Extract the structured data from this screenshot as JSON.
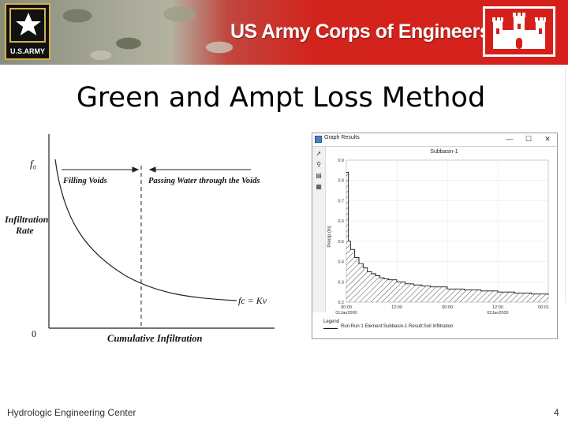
{
  "banner": {
    "army_logo_text": "U.S.ARMY",
    "title": "US Army Corps of Engineers",
    "colors": {
      "red": "#d61f1b",
      "gold": "#d4b24a"
    }
  },
  "slide": {
    "title": "Green and Ampt Loss Method",
    "footer_left": "Hydrologic Engineering Center",
    "page_number": "4"
  },
  "diagram": {
    "f0_label": "f₀",
    "filling_voids": "Filling Voids",
    "passing_water": "Passing Water through the Voids",
    "y_axis_label_line1": "Infiltration",
    "y_axis_label_line2": "Rate",
    "fc_label": "fc = Kv",
    "zero_label": "0",
    "x_axis_label": "Cumulative Infiltration"
  },
  "graph_window": {
    "title": "Graph Results",
    "controls": {
      "minimize": "—",
      "maximize": "☐",
      "close": "✕"
    },
    "tools": [
      "pointer-icon",
      "zoom-icon",
      "graph-icon",
      "table-icon"
    ]
  },
  "chart_data": {
    "type": "area",
    "title": "Subbasin-1",
    "ylabel": "Precip (in)",
    "ylim": [
      0.2,
      0.9
    ],
    "yticks": [
      "0.9",
      "0.8",
      "0.7",
      "0.6",
      "0.5",
      "0.4",
      "0.3",
      "0.2"
    ],
    "xticks": [
      {
        "time": "00:00",
        "date": "01Jan2000"
      },
      {
        "time": "12:00",
        "date": ""
      },
      {
        "time": "00:00",
        "date": ""
      },
      {
        "time": "12:00",
        "date": "02Jan2000"
      },
      {
        "time": "00:01",
        "date": ""
      }
    ],
    "legend_title": "Legend",
    "series": [
      {
        "name": "Run:Run 1 Element:Subbasin-1 Result:Soil Infiltration",
        "x_hours": [
          0,
          0.5,
          1,
          2,
          3,
          4,
          5,
          6,
          7,
          8,
          9,
          10,
          12,
          14,
          16,
          18,
          20,
          24,
          28,
          32,
          36,
          40,
          44,
          48
        ],
        "values": [
          0.84,
          0.5,
          0.46,
          0.42,
          0.39,
          0.37,
          0.35,
          0.34,
          0.33,
          0.32,
          0.315,
          0.31,
          0.3,
          0.29,
          0.285,
          0.28,
          0.275,
          0.265,
          0.26,
          0.255,
          0.25,
          0.245,
          0.24,
          0.235
        ]
      }
    ]
  }
}
